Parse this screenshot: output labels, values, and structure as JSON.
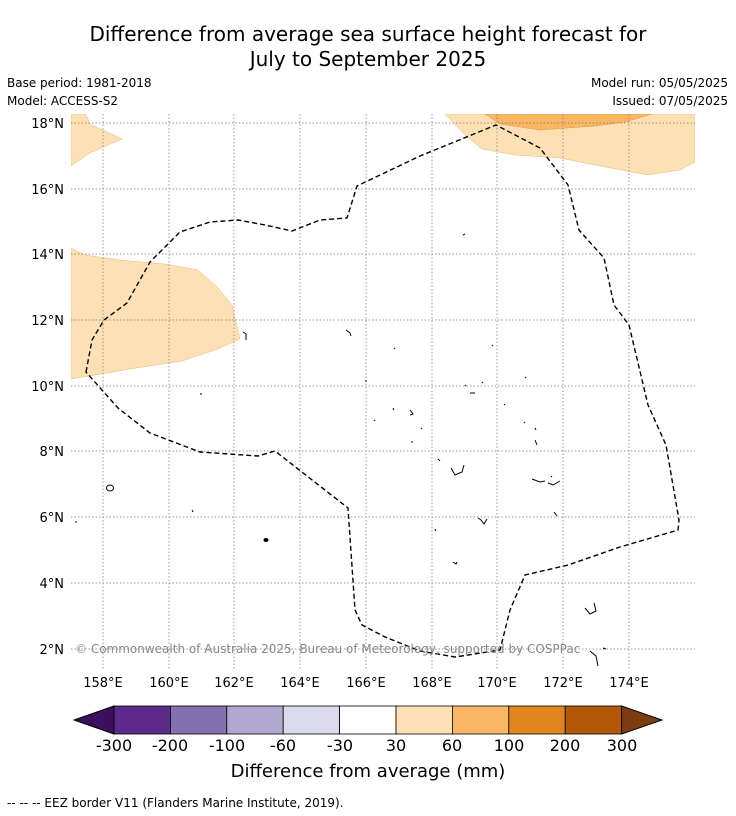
{
  "title_line1": "Difference from average sea surface height forecast for",
  "title_line2": "July to September 2025",
  "base_period": "Base period: 1981-2018",
  "model": "Model: ACCESS-S2",
  "model_run": "Model run: 05/05/2025",
  "issued": "Issued: 07/05/2025",
  "copyright": "© Commonwealth of Australia 2025, Bureau of Meteorology, supported by COSPPac",
  "lat_labels": [
    "18°N",
    "16°N",
    "14°N",
    "12°N",
    "10°N",
    "8°N",
    "6°N",
    "4°N",
    "2°N"
  ],
  "lon_labels": [
    "158°E",
    "160°E",
    "162°E",
    "164°E",
    "166°E",
    "168°E",
    "170°E",
    "172°E",
    "174°E"
  ],
  "colorbar": {
    "title": "Difference from average (mm)",
    "ticks": [
      "-300",
      "-200",
      "-100",
      "-60",
      "-30",
      "30",
      "60",
      "100",
      "200",
      "300"
    ],
    "colors": [
      "#3a0f5e",
      "#5b2a8a",
      "#8370ae",
      "#b1a8d2",
      "#dadaea",
      "#ffffff",
      "#fde0b4",
      "#f9b663",
      "#e3851e",
      "#b45808",
      "#7d3c0e"
    ]
  },
  "legend_note": "--  --  -- EEZ border V11 (Flanders Marine Institute, 2019)."
}
